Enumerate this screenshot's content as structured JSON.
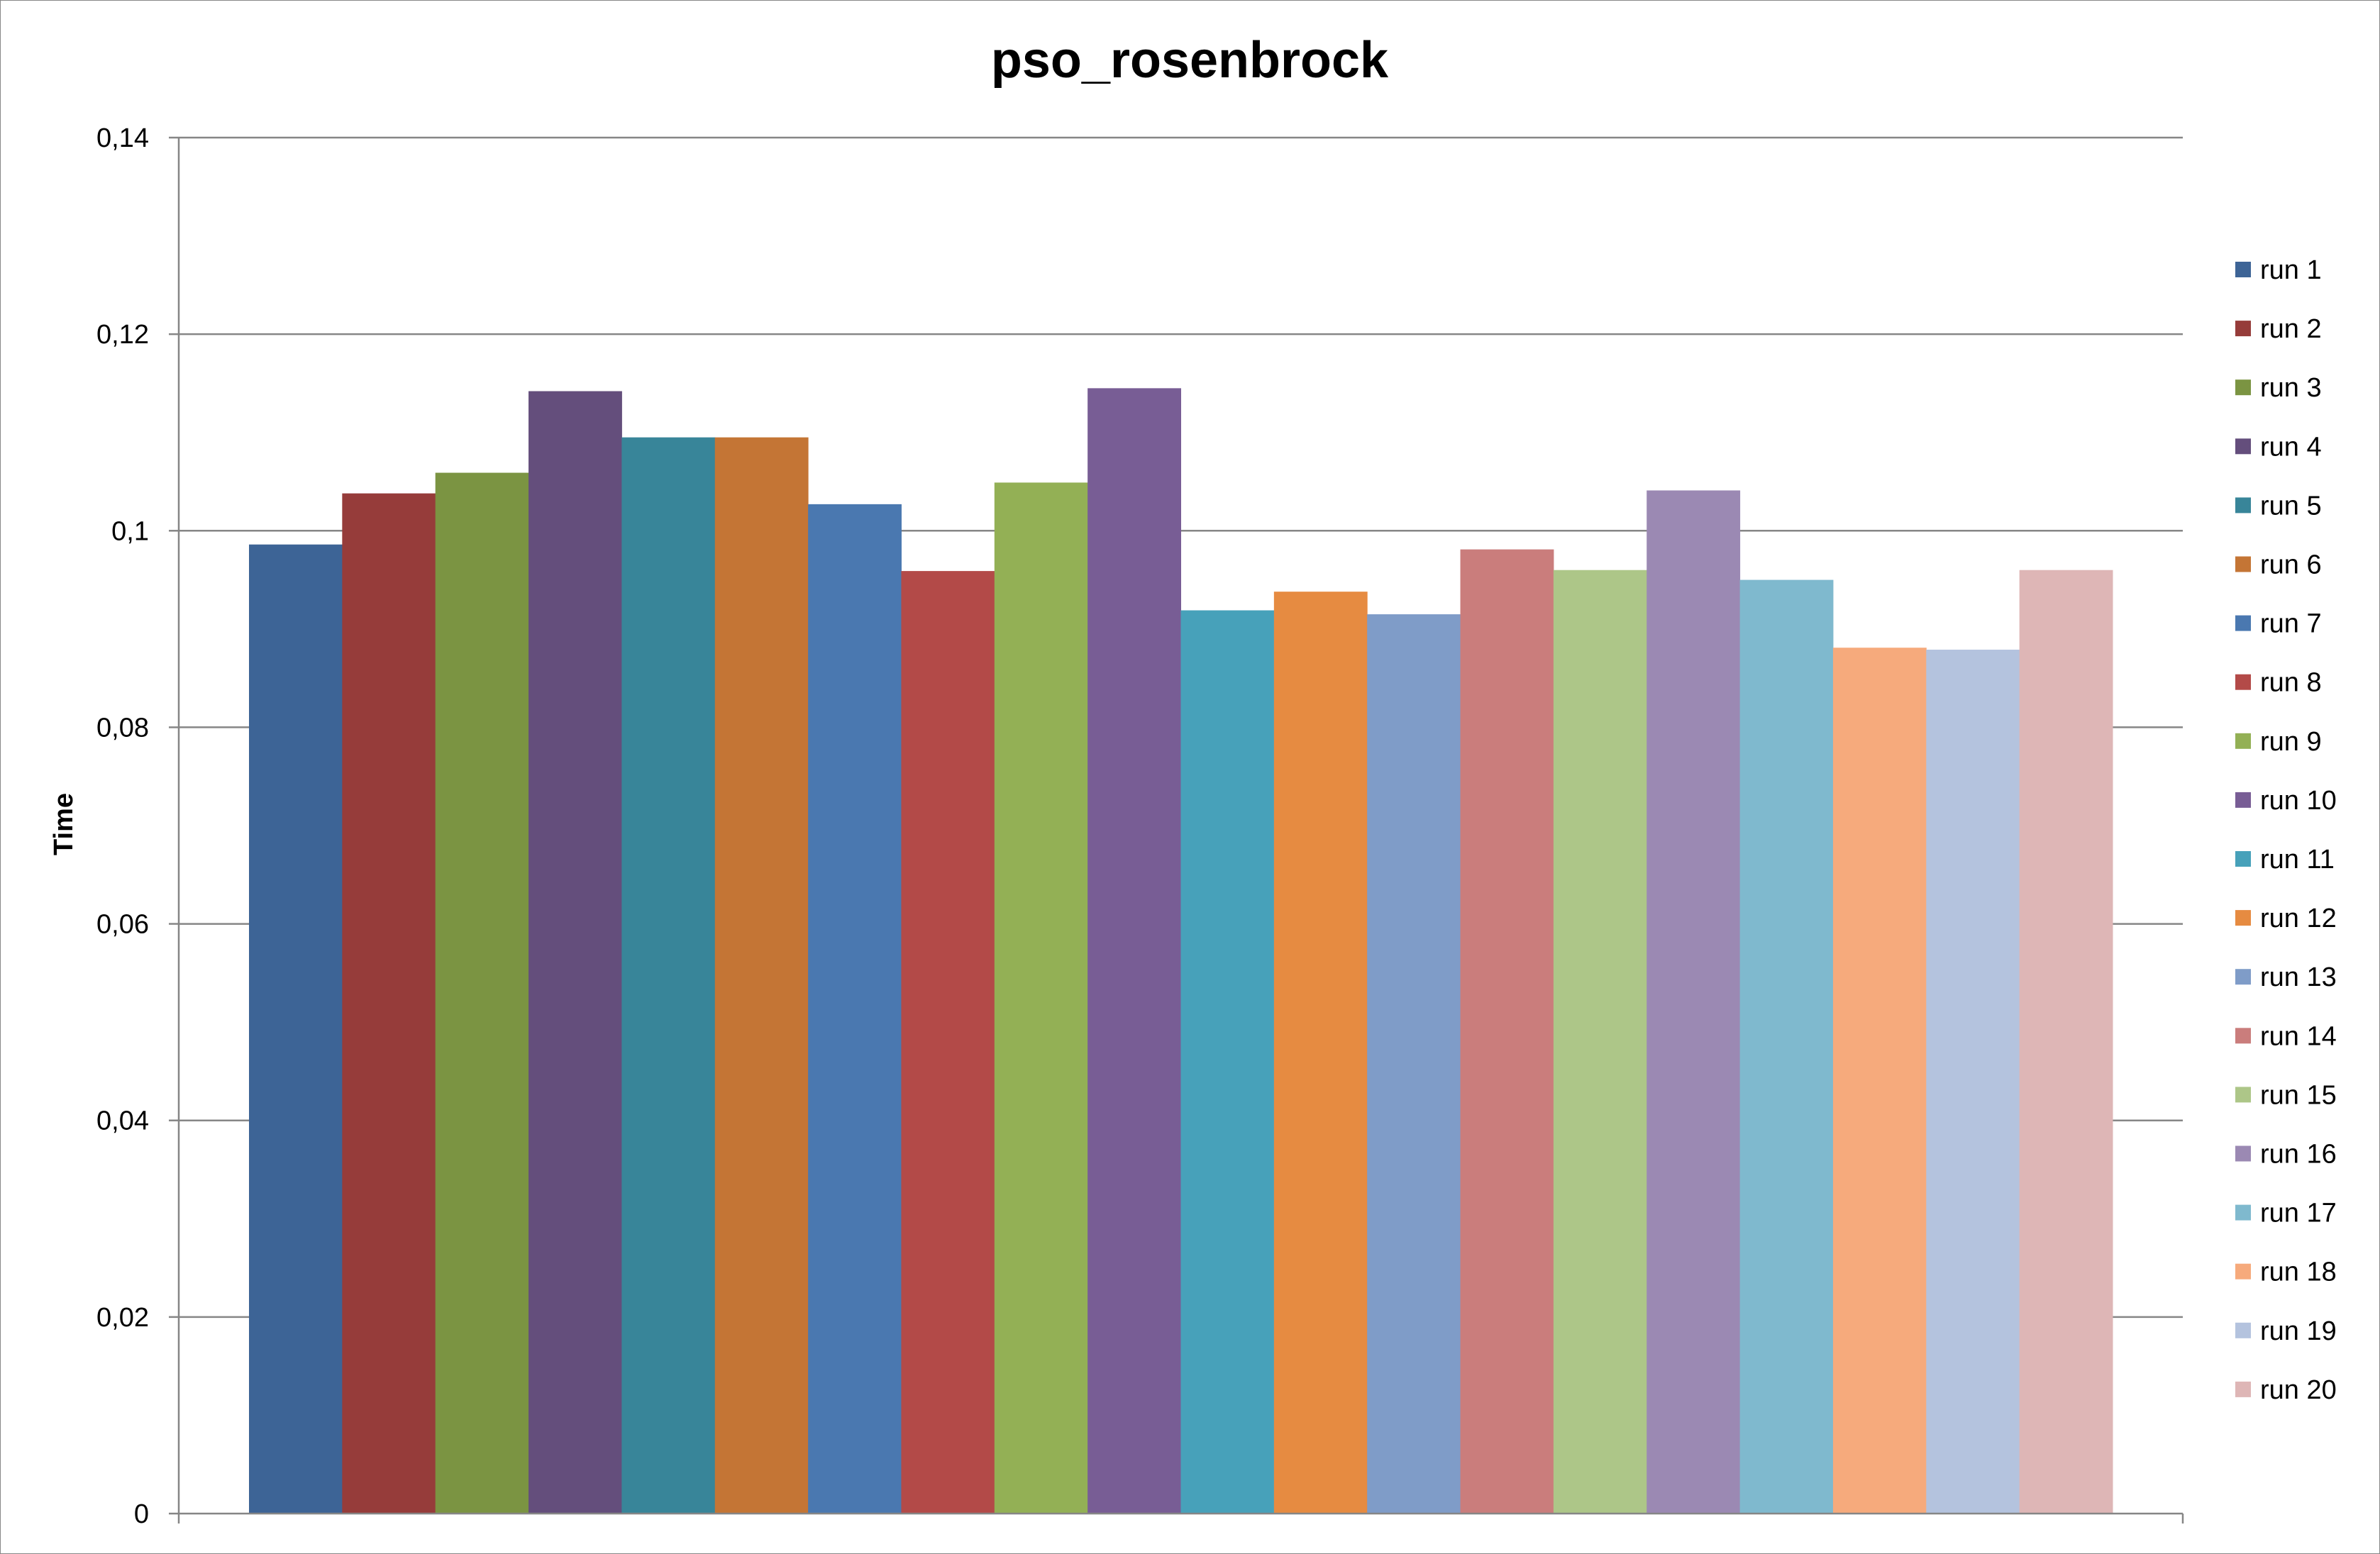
{
  "chart_data": {
    "type": "bar",
    "title": "pso_rosenbrock",
    "xlabel": "",
    "ylabel": "Time",
    "ylim": [
      0,
      0.14
    ],
    "yticks": [
      {
        "value": 0,
        "label": "0"
      },
      {
        "value": 0.02,
        "label": "0,02"
      },
      {
        "value": 0.04,
        "label": "0,04"
      },
      {
        "value": 0.06,
        "label": "0,06"
      },
      {
        "value": 0.08,
        "label": "0,08"
      },
      {
        "value": 0.1,
        "label": "0,1"
      },
      {
        "value": 0.12,
        "label": "0,12"
      },
      {
        "value": 0.14,
        "label": "0,14"
      }
    ],
    "grid": true,
    "legend_position": "right",
    "series": [
      {
        "name": "run 1",
        "values": [
          0.0986
        ],
        "color": "#3D6496"
      },
      {
        "name": "run 2",
        "values": [
          0.1038
        ],
        "color": "#963C3A"
      },
      {
        "name": "run 3",
        "values": [
          0.1059
        ],
        "color": "#7B9442"
      },
      {
        "name": "run 4",
        "values": [
          0.1142
        ],
        "color": "#644E7C"
      },
      {
        "name": "run 5",
        "values": [
          0.1095
        ],
        "color": "#388599"
      },
      {
        "name": "run 6",
        "values": [
          0.1095
        ],
        "color": "#C47535"
      },
      {
        "name": "run 7",
        "values": [
          0.1027
        ],
        "color": "#4A78B0"
      },
      {
        "name": "run 8",
        "values": [
          0.0959
        ],
        "color": "#B34A48"
      },
      {
        "name": "run 9",
        "values": [
          0.1049
        ],
        "color": "#93B055"
      },
      {
        "name": "run 10",
        "values": [
          0.1145
        ],
        "color": "#785D95"
      },
      {
        "name": "run 11",
        "values": [
          0.0919
        ],
        "color": "#47A1BA"
      },
      {
        "name": "run 12",
        "values": [
          0.0938
        ],
        "color": "#E68B41"
      },
      {
        "name": "run 13",
        "values": [
          0.0915
        ],
        "color": "#7F9CC8"
      },
      {
        "name": "run 14",
        "values": [
          0.0981
        ],
        "color": "#CA7D7C"
      },
      {
        "name": "run 15",
        "values": [
          0.096
        ],
        "color": "#ADC688"
      },
      {
        "name": "run 16",
        "values": [
          0.1041
        ],
        "color": "#9B89B3"
      },
      {
        "name": "run 17",
        "values": [
          0.095
        ],
        "color": "#7FB9CE"
      },
      {
        "name": "run 18",
        "values": [
          0.0881
        ],
        "color": "#F6AA7C"
      },
      {
        "name": "run 19",
        "values": [
          0.0879
        ],
        "color": "#B4C3DE"
      },
      {
        "name": "run 20",
        "values": [
          0.096
        ],
        "color": "#DEB6B6"
      }
    ],
    "axis_color": "#868686",
    "grid_color": "#868686"
  }
}
